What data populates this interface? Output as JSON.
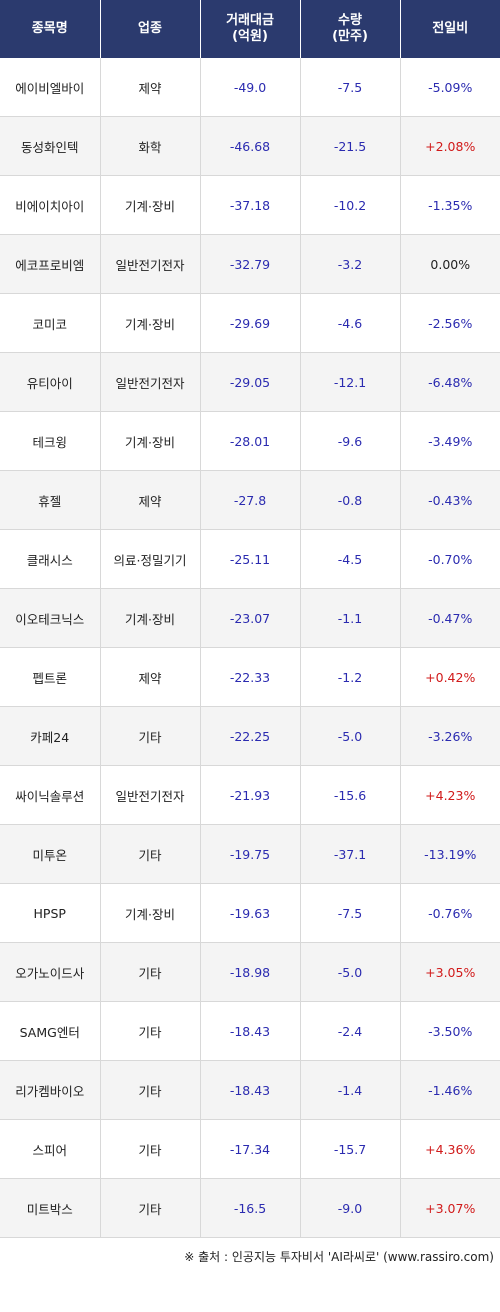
{
  "headers": [
    {
      "lines": [
        "종목명"
      ]
    },
    {
      "lines": [
        "업종"
      ]
    },
    {
      "lines": [
        "거래대금",
        "(억원)"
      ]
    },
    {
      "lines": [
        "수량",
        "(만주)"
      ]
    },
    {
      "lines": [
        "전일비"
      ]
    }
  ],
  "rows": [
    {
      "name": "에이비엘바이",
      "sector": "제약",
      "amount": "-49.0",
      "qty": "-7.5",
      "change": "-5.09%"
    },
    {
      "name": "동성화인텍",
      "sector": "화학",
      "amount": "-46.68",
      "qty": "-21.5",
      "change": "+2.08%"
    },
    {
      "name": "비에이치아이",
      "sector": "기계·장비",
      "amount": "-37.18",
      "qty": "-10.2",
      "change": "-1.35%"
    },
    {
      "name": "에코프로비엠",
      "sector": "일반전기전자",
      "amount": "-32.79",
      "qty": "-3.2",
      "change": "0.00%"
    },
    {
      "name": "코미코",
      "sector": "기계·장비",
      "amount": "-29.69",
      "qty": "-4.6",
      "change": "-2.56%"
    },
    {
      "name": "유티아이",
      "sector": "일반전기전자",
      "amount": "-29.05",
      "qty": "-12.1",
      "change": "-6.48%"
    },
    {
      "name": "테크윙",
      "sector": "기계·장비",
      "amount": "-28.01",
      "qty": "-9.6",
      "change": "-3.49%"
    },
    {
      "name": "휴젤",
      "sector": "제약",
      "amount": "-27.8",
      "qty": "-0.8",
      "change": "-0.43%"
    },
    {
      "name": "클래시스",
      "sector": "의료·정밀기기",
      "amount": "-25.11",
      "qty": "-4.5",
      "change": "-0.70%"
    },
    {
      "name": "이오테크닉스",
      "sector": "기계·장비",
      "amount": "-23.07",
      "qty": "-1.1",
      "change": "-0.47%"
    },
    {
      "name": "펩트론",
      "sector": "제약",
      "amount": "-22.33",
      "qty": "-1.2",
      "change": "+0.42%"
    },
    {
      "name": "카페24",
      "sector": "기타",
      "amount": "-22.25",
      "qty": "-5.0",
      "change": "-3.26%"
    },
    {
      "name": "싸이닉솔루션",
      "sector": "일반전기전자",
      "amount": "-21.93",
      "qty": "-15.6",
      "change": "+4.23%"
    },
    {
      "name": "미투온",
      "sector": "기타",
      "amount": "-19.75",
      "qty": "-37.1",
      "change": "-13.19%"
    },
    {
      "name": "HPSP",
      "sector": "기계·장비",
      "amount": "-19.63",
      "qty": "-7.5",
      "change": "-0.76%"
    },
    {
      "name": "오가노이드사",
      "sector": "기타",
      "amount": "-18.98",
      "qty": "-5.0",
      "change": "+3.05%"
    },
    {
      "name": "SAMG엔터",
      "sector": "기타",
      "amount": "-18.43",
      "qty": "-2.4",
      "change": "-3.50%"
    },
    {
      "name": "리가켐바이오",
      "sector": "기타",
      "amount": "-18.43",
      "qty": "-1.4",
      "change": "-1.46%"
    },
    {
      "name": "스피어",
      "sector": "기타",
      "amount": "-17.34",
      "qty": "-15.7",
      "change": "+4.36%"
    },
    {
      "name": "미트박스",
      "sector": "기타",
      "amount": "-16.5",
      "qty": "-9.0",
      "change": "+3.07%"
    }
  ],
  "source": "※ 출처 : 인공지능 투자비서 'AI라씨로' (www.rassiro.com)",
  "colors": {
    "header_bg": "#2b3a6e",
    "negative": "#2b2bb0",
    "positive": "#d11a1a",
    "neutral": "#222222"
  }
}
